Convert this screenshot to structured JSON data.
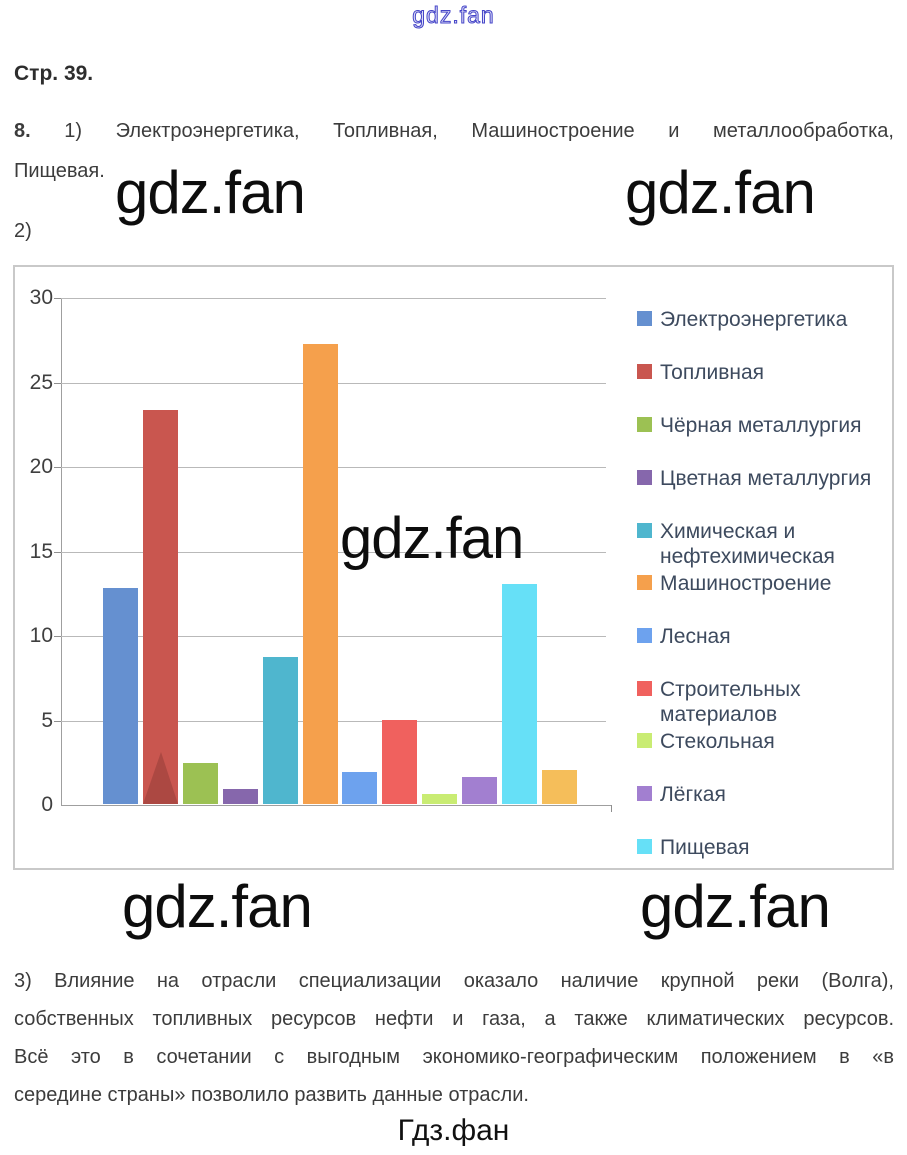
{
  "watermarks": {
    "top": "gdz.fan",
    "large": "gdz.fan",
    "bottom": "Гдз.фан"
  },
  "content": {
    "heading": "Стр. 39.",
    "answer1": {
      "bold_prefix": "8.",
      "line1_rest": "1) Электроэнергетика, Топливная, Машиностроение и металлообработка,",
      "line2": "Пищевая."
    },
    "answer2_label": "2)",
    "answer3": {
      "lines": [
        "3) Влияние на отрасли специализации оказало наличие крупной реки (Волга),",
        "собственных топливных ресурсов нефти и газа, а также климатических ресурсов.",
        "Всё это в сочетании с выгодным экономико-географическим положением в «в",
        "середине страны» позволило развить данные отрасли."
      ]
    }
  },
  "chart_data": {
    "type": "bar",
    "title": "",
    "xlabel": "",
    "ylabel": "",
    "ylim": [
      0,
      30
    ],
    "yticks": [
      0,
      5,
      10,
      15,
      20,
      25,
      30
    ],
    "grid": true,
    "legend_position": "right",
    "series": [
      {
        "name": "Электроэнергетика",
        "value": 12.8,
        "color": "#6590d0"
      },
      {
        "name": "Топливная",
        "value": 23.3,
        "color": "#c9564f"
      },
      {
        "name": "Чёрная металлургия",
        "value": 2.4,
        "color": "#9cc153"
      },
      {
        "name": "Цветная металлургия",
        "value": 0.9,
        "color": "#8667ac"
      },
      {
        "name": "Химическая и нефтехимическая",
        "value": 8.7,
        "color": "#4fb6ce"
      },
      {
        "name": "Машиностроение",
        "value": 27.2,
        "color": "#f5a04c"
      },
      {
        "name": "Лесная",
        "value": 1.9,
        "color": "#6da2ee"
      },
      {
        "name": "Строительных материалов",
        "value": 5.0,
        "color": "#f0615e"
      },
      {
        "name": "Стекольная",
        "value": 0.6,
        "color": "#c9ec73"
      },
      {
        "name": "Лёгкая",
        "value": 1.6,
        "color": "#a27fd0"
      },
      {
        "name": "Пищевая",
        "value": 13.0,
        "color": "#66e0f7"
      },
      {
        "name": "",
        "value": 2.0,
        "color": "#f5be5a"
      }
    ]
  }
}
